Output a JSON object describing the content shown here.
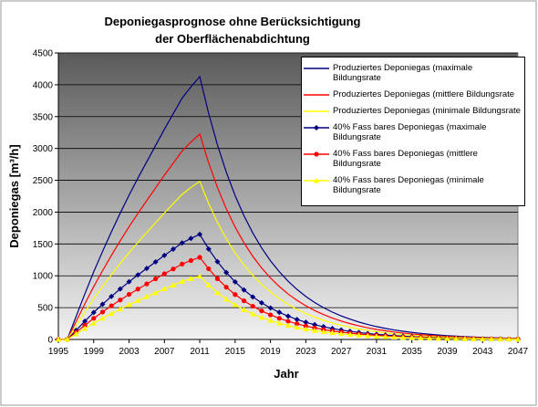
{
  "chart_data": {
    "type": "line",
    "title": "Deponiegasprognose ohne Berücksichtigung der Oberflächenabdichtung",
    "x_label": "Jahr",
    "y_label": "Deponiegas [m³/h]",
    "x": [
      1995,
      1996,
      1997,
      1998,
      1999,
      2000,
      2001,
      2002,
      2003,
      2004,
      2005,
      2006,
      2007,
      2008,
      2009,
      2010,
      2011,
      2012,
      2013,
      2014,
      2015,
      2016,
      2017,
      2018,
      2019,
      2020,
      2021,
      2022,
      2023,
      2024,
      2025,
      2026,
      2027,
      2028,
      2029,
      2030,
      2031,
      2032,
      2033,
      2034,
      2035,
      2036,
      2037,
      2038,
      2039,
      2040,
      2041,
      2042,
      2043,
      2044,
      2045,
      2046,
      2047
    ],
    "xlim": [
      1995,
      2047
    ],
    "xticks": [
      1995,
      1999,
      2003,
      2007,
      2011,
      2015,
      2019,
      2023,
      2027,
      2031,
      2035,
      2039,
      2043,
      2047
    ],
    "ylim": [
      0,
      4500
    ],
    "yticks": [
      0,
      500,
      1000,
      1500,
      2000,
      2500,
      3000,
      3500,
      4000,
      4500
    ],
    "grid": true,
    "legend": "upper right",
    "series": [
      {
        "name": "Produziertes Deponiegas (maximale Bildungsrate",
        "color": "#000080",
        "marker": "none",
        "values": [
          0,
          0,
          358,
          717,
          1062,
          1382,
          1690,
          1984,
          2266,
          2534,
          2790,
          3046,
          3302,
          3546,
          3789,
          3968,
          4128,
          3552,
          3055,
          2628,
          2259,
          1943,
          1672,
          1437,
          1236,
          1064,
          914,
          786,
          676,
          581,
          500,
          430,
          370,
          319,
          274,
          236,
          202,
          174,
          150,
          129,
          111,
          96,
          82,
          70,
          60,
          52,
          45,
          38,
          33,
          28,
          24,
          20,
          18
        ]
      },
      {
        "name": "Produziertes Deponiegas (mittlere Bildungsrate",
        "color": "#ff0000",
        "marker": "none",
        "values": [
          0,
          0,
          280,
          560,
          830,
          1080,
          1320,
          1550,
          1770,
          1980,
          2180,
          2380,
          2580,
          2770,
          2960,
          3100,
          3225,
          2775,
          2387,
          2053,
          1765,
          1518,
          1306,
          1123,
          966,
          831,
          714,
          614,
          528,
          454,
          391,
          336,
          289,
          249,
          214,
          184,
          158,
          136,
          117,
          101,
          87,
          75,
          64,
          55,
          47,
          41,
          35,
          30,
          26,
          22,
          19,
          16,
          14
        ]
      },
      {
        "name": "Produziertes Deponiegas (minimale Bildungsrate",
        "color": "#ffff00",
        "marker": "none",
        "values": [
          0,
          0,
          216,
          431,
          639,
          832,
          1016,
          1194,
          1363,
          1525,
          1679,
          1833,
          1987,
          2133,
          2279,
          2387,
          2483,
          2137,
          1838,
          1581,
          1359,
          1169,
          1006,
          865,
          744,
          640,
          550,
          473,
          407,
          350,
          301,
          259,
          223,
          192,
          165,
          142,
          122,
          105,
          90,
          78,
          67,
          58,
          49,
          42,
          36,
          32,
          27,
          23,
          20,
          17,
          15,
          12,
          11
        ]
      },
      {
        "name": "40% Fass bares Deponiegas (maximale Bildungsrate",
        "color": "#000080",
        "marker": "diamond",
        "values": [
          0,
          0,
          143,
          287,
          425,
          553,
          676,
          794,
          906,
          1014,
          1116,
          1218,
          1321,
          1418,
          1516,
          1587,
          1651,
          1421,
          1222,
          1051,
          904,
          777,
          669,
          575,
          494,
          426,
          366,
          314,
          270,
          232,
          200,
          172,
          148,
          128,
          110,
          94,
          81,
          70,
          60,
          52,
          44,
          38,
          33,
          28,
          24,
          21,
          18,
          15,
          13,
          11,
          10,
          8,
          7
        ]
      },
      {
        "name": "40% Fass bares Deponiegas (mittlere Bildungsrate",
        "color": "#ff0000",
        "marker": "circle",
        "values": [
          0,
          0,
          112,
          224,
          332,
          432,
          528,
          620,
          708,
          792,
          872,
          952,
          1032,
          1108,
          1184,
          1240,
          1290,
          1110,
          955,
          821,
          706,
          607,
          522,
          449,
          386,
          332,
          286,
          246,
          211,
          182,
          156,
          134,
          116,
          100,
          86,
          74,
          63,
          54,
          47,
          40,
          35,
          30,
          26,
          22,
          19,
          16,
          14,
          12,
          10,
          9,
          8,
          6,
          6
        ]
      },
      {
        "name": "40% Fass bares Deponiegas (minimale Bildungsrate",
        "color": "#ffff00",
        "marker": "triangle",
        "values": [
          0,
          0,
          86,
          172,
          256,
          333,
          406,
          478,
          545,
          610,
          672,
          733,
          795,
          853,
          912,
          955,
          993,
          855,
          735,
          632,
          544,
          468,
          402,
          346,
          298,
          256,
          220,
          189,
          163,
          140,
          120,
          104,
          89,
          77,
          66,
          57,
          49,
          42,
          36,
          31,
          27,
          23,
          20,
          17,
          14,
          13,
          11,
          9,
          8,
          7,
          6,
          5,
          4
        ]
      }
    ]
  }
}
